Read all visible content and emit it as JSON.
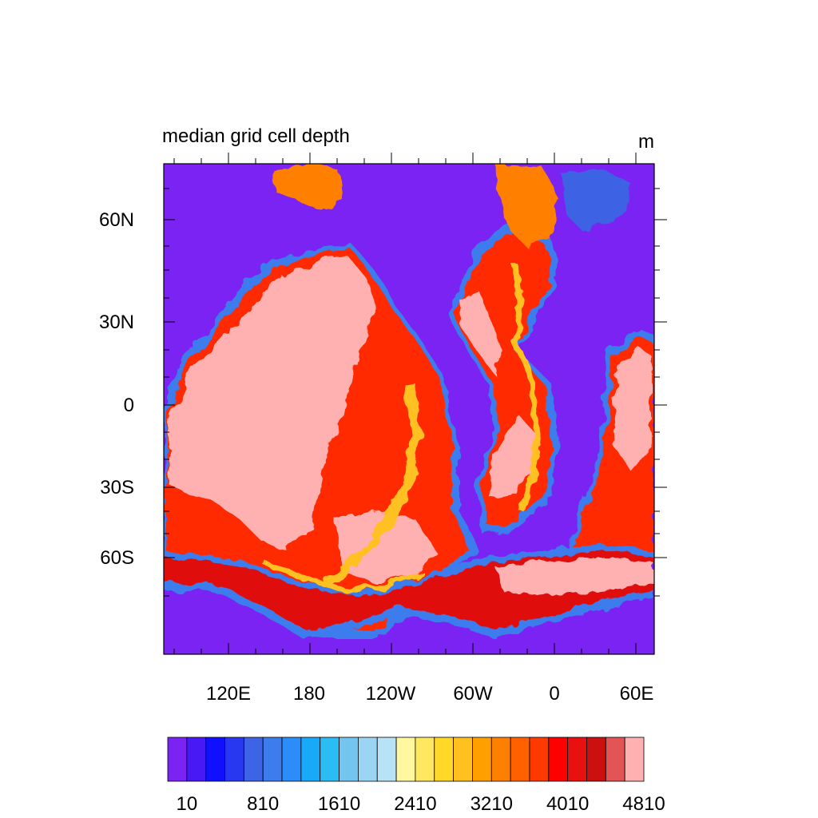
{
  "chart_data": {
    "type": "heatmap",
    "title": "median grid cell depth",
    "units": "m",
    "map_projection": "cylindrical lat-lon (rotated ocean grid)",
    "x_tick_labels": [
      "120E",
      "180",
      "120W",
      "60W",
      "0",
      "60E"
    ],
    "y_tick_labels": [
      "60N",
      "30N",
      "0",
      "30S",
      "60S"
    ],
    "colorbar": {
      "tick_labels": [
        "10",
        "810",
        "1610",
        "2410",
        "3210",
        "4010",
        "4810"
      ],
      "levels_start": 10,
      "level_step": 200,
      "colors": [
        "#7a23f2",
        "#4818f5",
        "#1010ff",
        "#2838f0",
        "#3c64e4",
        "#3c7cec",
        "#2c8cf8",
        "#18aaf8",
        "#2cbcf4",
        "#74c4f0",
        "#9cd4f4",
        "#b8e2f6",
        "#fff8a0",
        "#ffe860",
        "#ffd828",
        "#ffc020",
        "#ffa000",
        "#ff8000",
        "#ff6000",
        "#ff3a00",
        "#ff0000",
        "#e81010",
        "#cc1010",
        "#e35555",
        "#ffb0b0"
      ]
    }
  }
}
